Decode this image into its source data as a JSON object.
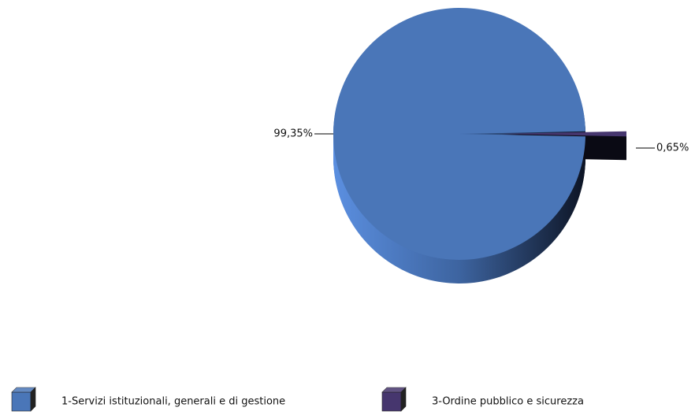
{
  "chart_data": {
    "type": "pie",
    "categories": [
      "1-Servizi istituzionali,  generali e di gestione",
      "3-Ordine pubblico e sicurezza"
    ],
    "values": [
      99.35,
      0.65
    ],
    "value_labels": [
      "99,35%",
      "0,65%"
    ],
    "colors": [
      "#4a76b8",
      "#46366e"
    ],
    "legend": "bottom"
  }
}
